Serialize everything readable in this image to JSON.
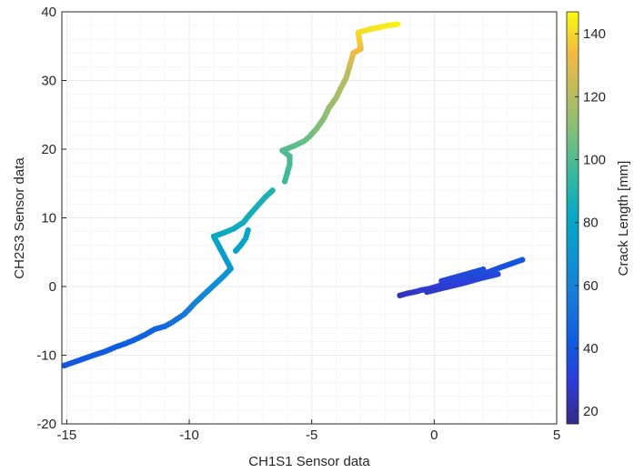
{
  "chart_data": {
    "type": "scatter",
    "title": "",
    "xlabel": "CH1S1 Sensor data",
    "ylabel": "CH2S3 Sensor data",
    "xlim": [
      -15.2,
      5
    ],
    "ylim": [
      -20,
      40
    ],
    "x_ticks": [
      -15,
      -10,
      -5,
      0,
      5
    ],
    "y_ticks": [
      -20,
      -10,
      0,
      10,
      20,
      30,
      40
    ],
    "grid": true,
    "colorbar": {
      "label": "Crack Length [mm]",
      "range": [
        16,
        147
      ],
      "ticks": [
        20,
        40,
        60,
        80,
        100,
        120,
        140
      ],
      "colormap": "parula"
    },
    "series": [
      {
        "points": [
          [
            -15.1,
            -11.5,
            40
          ],
          [
            -14.7,
            -11.0,
            40
          ],
          [
            -14.3,
            -10.5,
            41
          ],
          [
            -13.9,
            -10.0,
            41
          ],
          [
            -13.4,
            -9.4,
            42
          ],
          [
            -13.0,
            -8.8,
            42
          ],
          [
            -12.6,
            -8.3,
            43
          ],
          [
            -12.2,
            -7.7,
            44
          ],
          [
            -11.8,
            -7.0,
            45
          ],
          [
            -11.4,
            -6.2,
            46
          ],
          [
            -11.0,
            -5.8,
            48
          ],
          [
            -10.7,
            -5.2,
            50
          ],
          [
            -10.4,
            -4.5,
            52
          ],
          [
            -10.2,
            -4.0,
            54
          ],
          [
            -10.0,
            -3.3,
            56
          ],
          [
            -9.8,
            -2.5,
            59
          ],
          [
            -9.5,
            -1.5,
            62
          ],
          [
            -9.2,
            -0.5,
            64
          ],
          [
            -8.9,
            0.5,
            66
          ],
          [
            -8.6,
            1.5,
            68
          ],
          [
            -8.3,
            2.6,
            70
          ],
          [
            -9.0,
            7.3,
            82
          ],
          [
            -8.6,
            7.8,
            83
          ],
          [
            -8.2,
            8.4,
            84
          ],
          [
            -7.8,
            9.3,
            85
          ],
          [
            -7.5,
            10.6,
            86
          ],
          [
            -7.2,
            11.8,
            87
          ],
          [
            -6.9,
            13.0,
            88
          ],
          [
            -6.6,
            14.0,
            89
          ],
          [
            -8.1,
            5.2,
            78
          ],
          [
            -7.9,
            6.0,
            79
          ],
          [
            -7.7,
            7.0,
            80
          ],
          [
            -7.6,
            8.2,
            81
          ],
          [
            -6.1,
            15.3,
            96
          ],
          [
            -6.0,
            16.5,
            97
          ],
          [
            -5.9,
            17.8,
            98
          ],
          [
            -5.9,
            19.0,
            99
          ],
          [
            -6.2,
            19.8,
            100
          ],
          [
            -5.7,
            20.5,
            102
          ],
          [
            -5.3,
            21.2,
            104
          ],
          [
            -5.1,
            21.8,
            105
          ],
          [
            -4.8,
            23.0,
            108
          ],
          [
            -4.5,
            24.5,
            111
          ],
          [
            -4.3,
            26.0,
            113
          ],
          [
            -4.0,
            27.5,
            116
          ],
          [
            -3.8,
            29.0,
            118
          ],
          [
            -3.6,
            30.3,
            120
          ],
          [
            -3.5,
            31.5,
            122
          ],
          [
            -3.3,
            34.0,
            132
          ],
          [
            -3.0,
            34.6,
            134
          ],
          [
            -3.1,
            37.0,
            140
          ],
          [
            -2.7,
            37.4,
            142
          ],
          [
            -2.3,
            37.7,
            143
          ],
          [
            -1.9,
            38.0,
            144
          ],
          [
            -1.5,
            38.2,
            145
          ]
        ]
      },
      {
        "points": [
          [
            -1.4,
            -1.3,
            24
          ],
          [
            -1.1,
            -1.0,
            25
          ],
          [
            -0.8,
            -0.8,
            26
          ],
          [
            -0.5,
            -0.5,
            27
          ],
          [
            -0.2,
            -0.3,
            28
          ],
          [
            0.1,
            0.0,
            29
          ],
          [
            0.4,
            0.3,
            30
          ],
          [
            0.7,
            0.6,
            31
          ],
          [
            1.0,
            0.9,
            32
          ],
          [
            1.3,
            1.2,
            33
          ],
          [
            1.6,
            1.5,
            34
          ],
          [
            1.9,
            1.8,
            35
          ],
          [
            2.2,
            2.1,
            36
          ],
          [
            2.5,
            2.5,
            37
          ],
          [
            2.8,
            2.9,
            38
          ],
          [
            3.2,
            3.4,
            39
          ],
          [
            3.6,
            3.9,
            40
          ],
          [
            0.3,
            0.8,
            32
          ],
          [
            0.8,
            1.3,
            33
          ],
          [
            1.4,
            1.9,
            35
          ],
          [
            2.0,
            2.5,
            37
          ],
          [
            -0.3,
            -0.8,
            26
          ],
          [
            0.5,
            -0.1,
            28
          ],
          [
            1.2,
            0.5,
            30
          ],
          [
            1.9,
            1.2,
            32
          ],
          [
            2.6,
            1.8,
            34
          ]
        ]
      }
    ]
  }
}
